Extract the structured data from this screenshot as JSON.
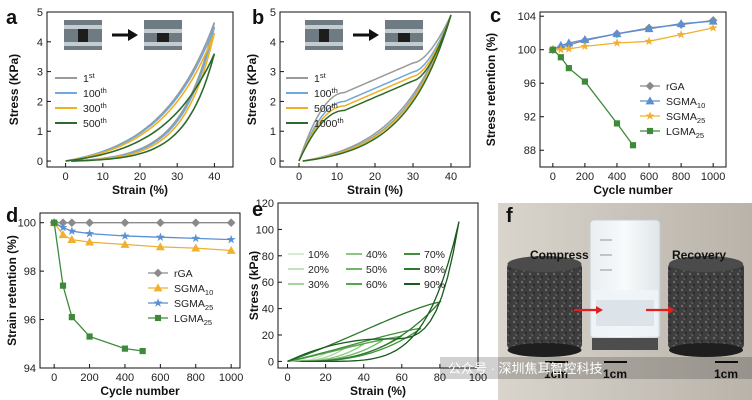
{
  "chart_data": [
    {
      "panel": "a",
      "type": "line",
      "xlabel": "Strain (%)",
      "ylabel": "Stress (KPa)",
      "xlim": [
        -5,
        45
      ],
      "ylim": [
        -0.2,
        5
      ],
      "xticks": [
        "0",
        "10",
        "20",
        "30",
        "40"
      ],
      "yticks": [
        "0",
        "1",
        "2",
        "3",
        "4",
        "5"
      ],
      "xtick_values": [
        0,
        10,
        20,
        30,
        40
      ],
      "ytick_values": [
        0,
        1,
        2,
        3,
        4,
        5
      ],
      "series": [
        {
          "name": "1",
          "sup": "st",
          "color": "#9a9a9a",
          "max_x": 40,
          "max_y": 4.65,
          "load_k": 2.7,
          "unload_k": 4.5
        },
        {
          "name": "100",
          "sup": "th",
          "color": "#6fa8dc",
          "max_x": 40,
          "max_y": 4.5,
          "load_k": 2.7,
          "unload_k": 4.6
        },
        {
          "name": "300",
          "sup": "th",
          "color": "#f0b020",
          "max_x": 40,
          "max_y": 4.3,
          "load_k": 2.8,
          "unload_k": 4.8
        },
        {
          "name": "500",
          "sup": "th",
          "color": "#2e6b2a",
          "max_x": 40,
          "max_y": 3.6,
          "load_k": 2.9,
          "unload_k": 5.0
        }
      ],
      "photos": {
        "arrow": true
      }
    },
    {
      "panel": "b",
      "type": "line",
      "xlabel": "Strain (%)",
      "ylabel": "Stress (KPa)",
      "xlim": [
        -5,
        45
      ],
      "ylim": [
        -0.2,
        5
      ],
      "xticks": [
        "0",
        "10",
        "20",
        "30",
        "40"
      ],
      "yticks": [
        "0",
        "1",
        "2",
        "3",
        "4",
        "5"
      ],
      "xtick_values": [
        0,
        10,
        20,
        30,
        40
      ],
      "ytick_values": [
        0,
        1,
        2,
        3,
        4,
        5
      ],
      "series": [
        {
          "name": "1",
          "sup": "st",
          "color": "#9a9a9a",
          "max_x": 40,
          "max_y": 4.9,
          "plateau": 2.3,
          "unload_k": 2.8
        },
        {
          "name": "100",
          "sup": "th",
          "color": "#6fa8dc",
          "max_x": 40,
          "max_y": 4.9,
          "plateau": 2.0,
          "unload_k": 3.0
        },
        {
          "name": "500",
          "sup": "th",
          "color": "#f0b020",
          "max_x": 40,
          "max_y": 4.9,
          "plateau": 1.85,
          "unload_k": 3.1
        },
        {
          "name": "1000",
          "sup": "th",
          "color": "#2e6b2a",
          "max_x": 40,
          "max_y": 4.9,
          "plateau": 1.7,
          "unload_k": 3.3
        }
      ],
      "photos": {
        "arrow": true
      }
    },
    {
      "panel": "c",
      "type": "line",
      "xlabel": "Cycle number",
      "ylabel": "Stress retention (%)",
      "xlim": [
        -80,
        1080
      ],
      "ylim": [
        86,
        104.5
      ],
      "xticks": [
        "0",
        "200",
        "400",
        "600",
        "800",
        "1000"
      ],
      "yticks": [
        "88",
        "92",
        "96",
        "100",
        "104"
      ],
      "xtick_values": [
        0,
        200,
        400,
        600,
        800,
        1000
      ],
      "ytick_values": [
        88,
        92,
        96,
        100,
        104
      ],
      "x": [
        0,
        50,
        100,
        200,
        400,
        600,
        800,
        1000
      ],
      "series": [
        {
          "name": "rGA",
          "sub": "",
          "color": "#8a8a8a",
          "marker": "diamond",
          "x": [
            0,
            50,
            100,
            200,
            400,
            600,
            800,
            1000
          ],
          "values": [
            100,
            100.3,
            100.6,
            101.1,
            101.9,
            102.6,
            103.0,
            103.5
          ]
        },
        {
          "name": "SGMA",
          "sub": "10",
          "color": "#5b8fd4",
          "marker": "triangle",
          "x": [
            0,
            50,
            100,
            200,
            400,
            600,
            800,
            1000
          ],
          "values": [
            100,
            100.5,
            100.8,
            101.2,
            101.9,
            102.5,
            103.1,
            103.4
          ]
        },
        {
          "name": "SGMA",
          "sub": "25",
          "color": "#f0b030",
          "marker": "star",
          "x": [
            0,
            50,
            100,
            200,
            400,
            600,
            800,
            1000
          ],
          "values": [
            100,
            100.0,
            100.1,
            100.4,
            100.8,
            101.0,
            101.8,
            102.6
          ]
        },
        {
          "name": "LGMA",
          "sub": "25",
          "color": "#3f8a3a",
          "marker": "square",
          "x": [
            0,
            50,
            100,
            200,
            400,
            500
          ],
          "values": [
            100,
            99.1,
            97.8,
            96.2,
            91.2,
            88.6
          ]
        }
      ]
    },
    {
      "panel": "d",
      "type": "line",
      "xlabel": "Cycle number",
      "ylabel": "Strain retention (%)",
      "xlim": [
        -80,
        1050
      ],
      "ylim": [
        94,
        100.4
      ],
      "xticks": [
        "0",
        "200",
        "400",
        "600",
        "800",
        "1000"
      ],
      "yticks": [
        "94",
        "96",
        "98",
        "100"
      ],
      "xtick_values": [
        0,
        200,
        400,
        600,
        800,
        1000
      ],
      "ytick_values": [
        94,
        96,
        98,
        100
      ],
      "series": [
        {
          "name": "rGA",
          "sub": "",
          "color": "#8a8a8a",
          "marker": "diamond",
          "x": [
            0,
            50,
            100,
            200,
            400,
            600,
            800,
            1000
          ],
          "values": [
            100,
            100,
            100,
            100,
            100,
            100,
            100,
            100
          ]
        },
        {
          "name": "SGMA",
          "sub": "10",
          "color": "#f0b030",
          "marker": "triangle",
          "x": [
            0,
            50,
            100,
            200,
            400,
            600,
            800,
            1000
          ],
          "values": [
            100,
            99.5,
            99.3,
            99.2,
            99.1,
            99.0,
            98.95,
            98.85
          ]
        },
        {
          "name": "SGMA",
          "sub": "25",
          "color": "#5b8fd4",
          "marker": "star",
          "x": [
            0,
            50,
            100,
            200,
            400,
            600,
            800,
            1000
          ],
          "values": [
            100,
            99.8,
            99.65,
            99.55,
            99.45,
            99.4,
            99.35,
            99.3
          ]
        },
        {
          "name": "LGMA",
          "sub": "25",
          "color": "#3f8a3a",
          "marker": "square",
          "x": [
            0,
            50,
            100,
            200,
            400,
            500
          ],
          "values": [
            100,
            97.4,
            96.1,
            95.3,
            94.8,
            94.7
          ]
        }
      ]
    },
    {
      "panel": "e",
      "type": "line",
      "xlabel": "Strain (%)",
      "ylabel": "Stress (kPa)",
      "xlim": [
        -5,
        100
      ],
      "ylim": [
        -5,
        120
      ],
      "xticks": [
        "0",
        "20",
        "40",
        "60",
        "80",
        "100"
      ],
      "yticks": [
        "0",
        "20",
        "40",
        "60",
        "80",
        "100",
        "120"
      ],
      "xtick_values": [
        0,
        20,
        40,
        60,
        80,
        100
      ],
      "ytick_values": [
        0,
        20,
        40,
        60,
        80,
        100,
        120
      ],
      "series": [
        {
          "name": "10%",
          "color": "#d6ecd2",
          "max_x": 10,
          "max_y": 2
        },
        {
          "name": "20%",
          "color": "#c3e3bd",
          "max_x": 20,
          "max_y": 6
        },
        {
          "name": "30%",
          "color": "#a7d59f",
          "max_x": 30,
          "max_y": 10
        },
        {
          "name": "40%",
          "color": "#8cc782",
          "max_x": 40,
          "max_y": 13
        },
        {
          "name": "50%",
          "color": "#6fb765",
          "max_x": 50,
          "max_y": 16
        },
        {
          "name": "60%",
          "color": "#57a64d",
          "max_x": 60,
          "max_y": 19
        },
        {
          "name": "70%",
          "color": "#3f923a",
          "max_x": 70,
          "max_y": 25
        },
        {
          "name": "80%",
          "color": "#2c7a2b",
          "max_x": 80,
          "max_y": 45
        },
        {
          "name": "90%",
          "color": "#1a5a1e",
          "max_x": 90,
          "max_y": 106
        }
      ]
    }
  ],
  "panel_f": {
    "label": "f",
    "compress_label": "Compress",
    "recovery_label": "Recovery",
    "scale_labels": [
      "1cm",
      "1cm",
      "1cm"
    ]
  },
  "watermark": "公众号 · 深圳焦耳智控科技"
}
